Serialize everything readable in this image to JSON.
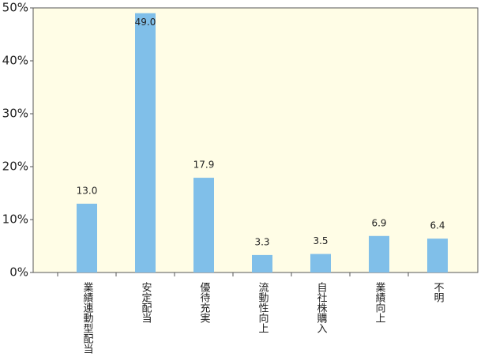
{
  "chart_data": {
    "type": "bar",
    "categories": [
      "業績連動型配当",
      "安定配当",
      "優待充実",
      "流動性向上",
      "自社株購入",
      "業績向上",
      "不明"
    ],
    "values": [
      13.0,
      49.0,
      17.9,
      3.3,
      3.5,
      6.9,
      6.4
    ],
    "value_labels": [
      "13.0",
      "49.0",
      "17.9",
      "3.3",
      "3.5",
      "6.9",
      "6.4"
    ],
    "color": "#80bfe9",
    "ylim": [
      0,
      50
    ],
    "yticks": [
      {
        "value": 0,
        "label": "0%"
      },
      {
        "value": 10,
        "label": "10%"
      },
      {
        "value": 20,
        "label": "20%"
      },
      {
        "value": 30,
        "label": "30%"
      },
      {
        "value": 40,
        "label": "40%"
      },
      {
        "value": 50,
        "label": "50%"
      }
    ],
    "grid": false
  }
}
